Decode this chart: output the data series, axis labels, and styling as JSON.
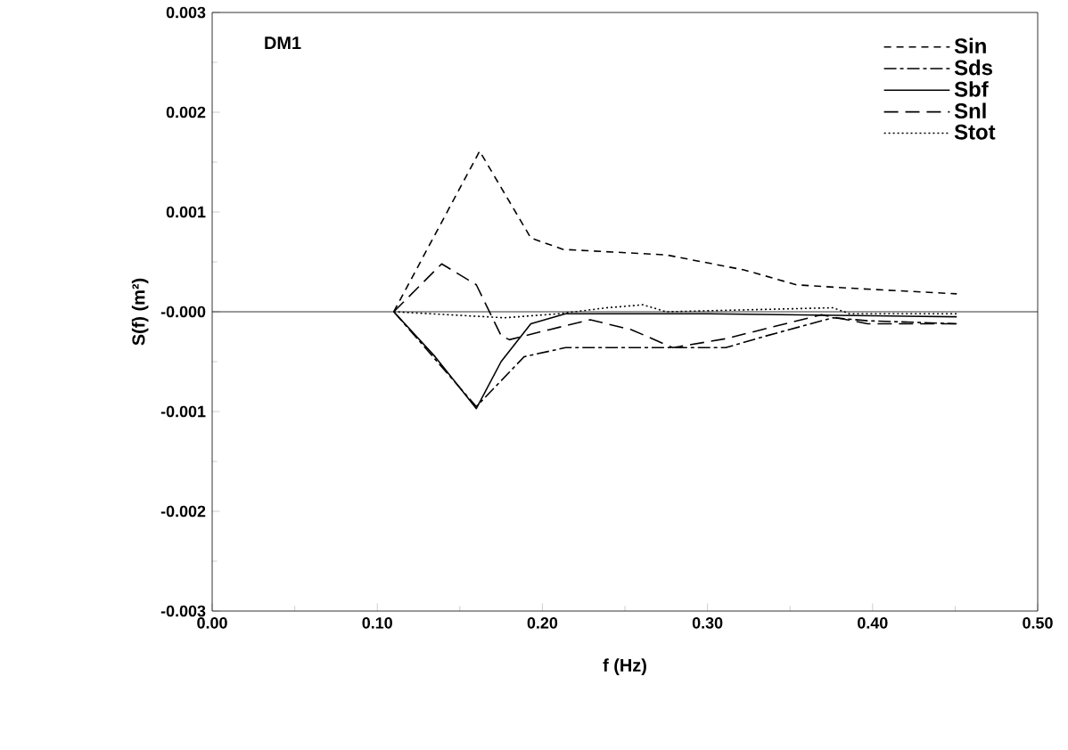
{
  "chart_data": {
    "type": "line",
    "xlabel": "f  (Hz)",
    "ylabel": "S(f)  (m²)",
    "annotations": [
      "DM1"
    ],
    "xlim": [
      0,
      0.5
    ],
    "xticks": [
      {
        "value": 0,
        "label": "0.00"
      },
      {
        "value": 0.1,
        "label": "0.10"
      },
      {
        "value": 0.2,
        "label": "0.20"
      },
      {
        "value": 0.3,
        "label": "0.30"
      },
      {
        "value": 0.4,
        "label": "0.40"
      },
      {
        "value": 0.5,
        "label": "0.50"
      }
    ],
    "ylim": [
      -0.003,
      0.003
    ],
    "yticks": [
      {
        "value": -0.003,
        "label": "-0.003"
      },
      {
        "value": -0.002,
        "label": "-0.002"
      },
      {
        "value": -0.001,
        "label": "-0.001"
      },
      {
        "value": 0,
        "label": "-0.000"
      },
      {
        "value": 0.001,
        "label": "0.001"
      },
      {
        "value": 0.002,
        "label": "0.002"
      },
      {
        "value": 0.003,
        "label": "0.003"
      }
    ],
    "ref_lines": [
      {
        "axis": "y",
        "value": 0,
        "color": "#000000",
        "line_style": "solid"
      }
    ],
    "legend": "top right",
    "grid": false,
    "marker": "none",
    "series": [
      {
        "name": "Sin",
        "color": "#000000",
        "line_style": "dashed",
        "x": [
          0.11,
          0.162,
          0.193,
          0.2125,
          0.275,
          0.322,
          0.354,
          0.393,
          0.451
        ],
        "values": [
          0,
          0.00161,
          0.00074,
          0.000625,
          0.00057,
          0.00042,
          0.00027,
          0.00023,
          0.00018
        ]
      },
      {
        "name": "Sds",
        "color": "#000000",
        "line_style": "dashdot",
        "x": [
          0.11,
          0.16,
          0.189,
          0.214,
          0.268,
          0.311,
          0.336,
          0.376,
          0.397,
          0.451
        ],
        "values": [
          0,
          -0.00095,
          -0.00045,
          -0.00036,
          -0.00036,
          -0.00036,
          -0.00024,
          -6e-05,
          -9e-05,
          -0.00012
        ]
      },
      {
        "name": "Sbf",
        "color": "#000000",
        "line_style": "solid",
        "x": [
          0.11,
          0.135,
          0.16,
          0.175,
          0.193,
          0.214,
          0.3,
          0.4,
          0.451
        ],
        "values": [
          0,
          -0.00045,
          -0.00097,
          -0.0005,
          -0.00012,
          -2e-05,
          -2e-05,
          -4e-05,
          -5e-05
        ]
      },
      {
        "name": "Snl",
        "color": "#000000",
        "line_style": "longdashed",
        "x": [
          0.11,
          0.139,
          0.16,
          0.175,
          0.18,
          0.204,
          0.229,
          0.254,
          0.279,
          0.311,
          0.34,
          0.369,
          0.397,
          0.451
        ],
        "values": [
          0,
          0.00048,
          0.00027,
          -0.00024,
          -0.00028,
          -0.00018,
          -8e-05,
          -0.00018,
          -0.00036,
          -0.00027,
          -0.00015,
          -3e-05,
          -0.00012,
          -0.00012
        ]
      },
      {
        "name": "Stot",
        "color": "#000000",
        "line_style": "dotted",
        "x": [
          0.11,
          0.177,
          0.21,
          0.239,
          0.261,
          0.275,
          0.376,
          0.386,
          0.451
        ],
        "values": [
          0,
          -6e-05,
          -2e-05,
          4e-05,
          7e-05,
          0,
          4e-05,
          -2e-05,
          -2e-05
        ]
      }
    ]
  }
}
